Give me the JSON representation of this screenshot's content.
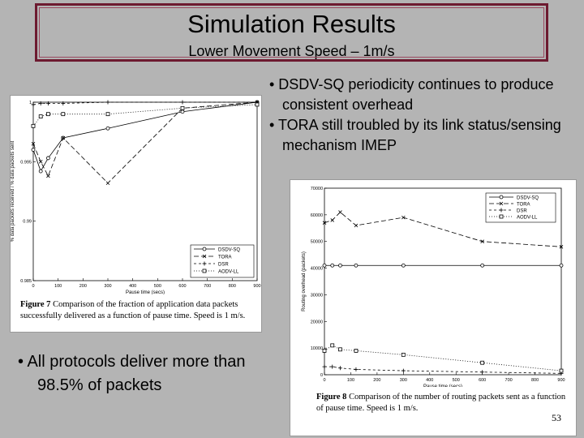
{
  "slide": {
    "title": "Simulation Results",
    "subtitle": "Lower Movement Speed – 1m/s",
    "bullets_right": [
      "• DSDV-SQ periodicity continues to produce consistent overhead",
      "• TORA still troubled by its link status/sensing mechanism IMEP"
    ],
    "bullets_left": [
      "• All protocols deliver more than 98.5% of packets"
    ],
    "page_number": "53"
  },
  "figures": {
    "fig7": {
      "caption_label": "Figure 7",
      "caption_text": "Comparison of the fraction of application data packets successfully delivered as a function of pause time. Speed is 1 m/s."
    },
    "fig8": {
      "caption_label": "Figure 8",
      "caption_text": "Comparison of the number of routing packets sent as a function of pause time. Speed is 1 m/s."
    }
  },
  "colors": {
    "background": "#b4b4b4",
    "title_border": "#6d1a30"
  },
  "chart_data": [
    {
      "type": "line",
      "xlabel": "Pause time (secs)",
      "ylabel": "% data packets received / % data packets sent",
      "xlim": [
        0,
        900
      ],
      "ylim": [
        0.985,
        1.0
      ],
      "xticks": [
        0,
        100,
        200,
        300,
        400,
        500,
        600,
        700,
        800,
        900
      ],
      "yticks": [
        "1",
        "0.995",
        "0.99",
        "0.985"
      ],
      "x": [
        0,
        30,
        60,
        120,
        300,
        600,
        900
      ],
      "series": [
        {
          "name": "DSDV-SQ",
          "values": [
            0.996,
            0.9942,
            0.9953,
            0.997,
            0.9978,
            0.9992,
            1.0
          ]
        },
        {
          "name": "TORA",
          "values": [
            0.9965,
            0.995,
            0.9938,
            0.997,
            0.9932,
            0.9995,
            1.0
          ]
        },
        {
          "name": "DSR",
          "values": [
            0.9998,
            0.9999,
            0.9999,
            0.9999,
            1.0,
            1.0,
            1.0
          ]
        },
        {
          "name": "AODV-LL",
          "values": [
            0.998,
            0.9988,
            0.999,
            0.999,
            0.999,
            0.9995,
            0.9998
          ]
        }
      ],
      "legend_position": "bottom-right"
    },
    {
      "type": "line",
      "xlabel": "Pause time (secs)",
      "ylabel": "Routing overhead (packets)",
      "xlim": [
        0,
        900
      ],
      "ylim": [
        0,
        70000
      ],
      "xticks": [
        0,
        100,
        200,
        300,
        400,
        500,
        600,
        700,
        800,
        900
      ],
      "yticks": [
        0,
        10000,
        20000,
        30000,
        40000,
        50000,
        60000,
        70000
      ],
      "x": [
        0,
        30,
        60,
        120,
        300,
        600,
        900
      ],
      "series": [
        {
          "name": "DSDV-SQ",
          "values": [
            41000,
            41000,
            41000,
            41000,
            41000,
            41000,
            41000
          ]
        },
        {
          "name": "TORA",
          "values": [
            57000,
            58000,
            61000,
            56000,
            59000,
            50000,
            48000
          ]
        },
        {
          "name": "DSR",
          "values": [
            3000,
            3000,
            2500,
            2000,
            1500,
            1000,
            500
          ]
        },
        {
          "name": "AODV-LL",
          "values": [
            9000,
            11000,
            9500,
            9000,
            7500,
            4500,
            1500
          ]
        }
      ],
      "legend_position": "top-right"
    }
  ]
}
